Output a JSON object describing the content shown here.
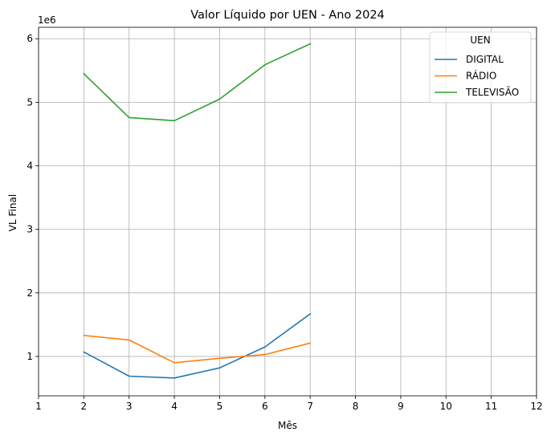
{
  "chart_data": {
    "type": "line",
    "title": "Valor Líquido por UEN - Ano 2024",
    "xlabel": "Mês",
    "ylabel": "VL Final",
    "y_offset_label": "1e6",
    "xlim": [
      1,
      12
    ],
    "ylim": [
      0.38,
      6.18
    ],
    "x_ticks": [
      1,
      2,
      3,
      4,
      5,
      6,
      7,
      8,
      9,
      10,
      11,
      12
    ],
    "x_tick_labels": [
      "1",
      "2",
      "3",
      "4",
      "5",
      "6",
      "7",
      "8",
      "9",
      "10",
      "11",
      "12"
    ],
    "y_ticks": [
      1,
      2,
      3,
      4,
      5,
      6
    ],
    "y_tick_labels": [
      "1",
      "2",
      "3",
      "4",
      "5",
      "6"
    ],
    "grid": true,
    "legend": {
      "title": "UEN",
      "placement": "top-right"
    },
    "x": [
      2,
      3,
      4,
      5,
      6,
      7
    ],
    "series": [
      {
        "name": "DIGITAL",
        "color": "#1f77b4",
        "values": [
          1.07,
          0.69,
          0.66,
          0.82,
          1.15,
          1.67
        ]
      },
      {
        "name": "RÁDIO",
        "color": "#ff7f0e",
        "values": [
          1.33,
          1.26,
          0.9,
          0.97,
          1.03,
          1.21
        ]
      },
      {
        "name": "TELEVISÃO",
        "color": "#2ca02c",
        "values": [
          5.45,
          4.76,
          4.71,
          5.05,
          5.59,
          5.92
        ]
      }
    ]
  }
}
